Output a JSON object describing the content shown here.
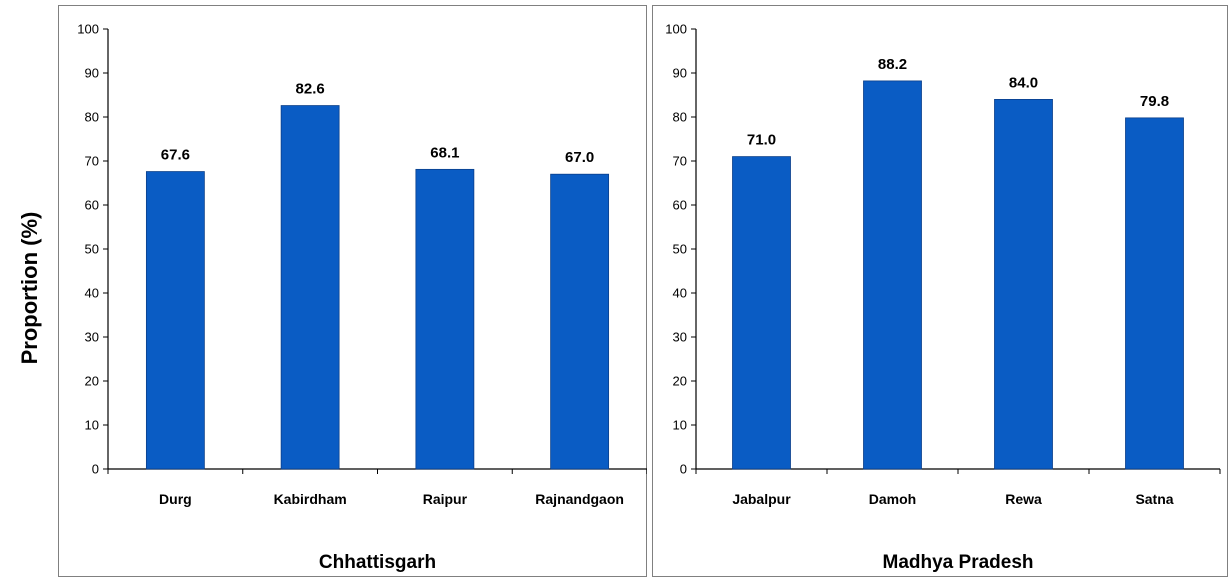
{
  "shared": {
    "ylabel": "Proportion (%)"
  },
  "chart_data": [
    {
      "type": "bar",
      "title": "Chhattisgarh",
      "categories": [
        "Durg",
        "Kabirdham",
        "Raipur",
        "Rajnandgaon"
      ],
      "values": [
        67.6,
        82.6,
        68.1,
        67.0
      ],
      "value_labels": [
        "67.6",
        "82.6",
        "68.1",
        "67.0"
      ],
      "ylabel": "Proportion (%)",
      "ylim": [
        0,
        100
      ],
      "yticks": [
        "0",
        "10",
        "20",
        "30",
        "40",
        "50",
        "60",
        "70",
        "80",
        "90",
        "100"
      ],
      "grid": false,
      "bar_color": "#0a5cc4"
    },
    {
      "type": "bar",
      "title": "Madhya Pradesh",
      "categories": [
        "Jabalpur",
        "Damoh",
        "Rewa",
        "Satna"
      ],
      "values": [
        71.0,
        88.2,
        84.0,
        79.8
      ],
      "value_labels": [
        "71.0",
        "88.2",
        "84.0",
        "79.8"
      ],
      "ylabel": "Proportion (%)",
      "ylim": [
        0,
        100
      ],
      "yticks": [
        "0",
        "10",
        "20",
        "30",
        "40",
        "50",
        "60",
        "70",
        "80",
        "90",
        "100"
      ],
      "grid": false,
      "bar_color": "#0a5cc4"
    }
  ]
}
